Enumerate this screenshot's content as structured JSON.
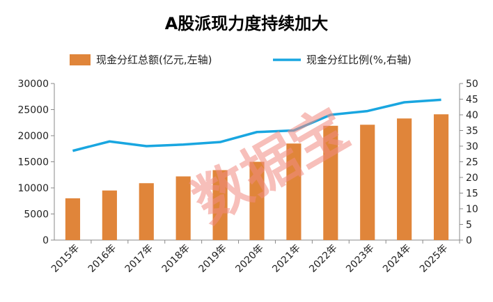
{
  "chart_data": {
    "type": "bar",
    "title": "A股派现力度持续加大",
    "categories": [
      "2015年",
      "2016年",
      "2017年",
      "2018年",
      "2019年",
      "2020年",
      "2021年",
      "2022年",
      "2023年",
      "2024年",
      "2025年"
    ],
    "series": [
      {
        "name": "现金分红总额(亿元,左轴)",
        "type": "bar",
        "axis": "left",
        "color": "#e0853a",
        "values": [
          8000,
          9500,
          10900,
          12200,
          13400,
          15000,
          18500,
          21900,
          22100,
          23300,
          24100
        ]
      },
      {
        "name": "现金分红比例(%,右轴)",
        "type": "line",
        "axis": "right",
        "color": "#19a6e0",
        "values": [
          28.5,
          31.5,
          30,
          30.5,
          31.3,
          34.5,
          35,
          40,
          41.2,
          44,
          44.8
        ]
      }
    ],
    "y_left": {
      "ylim": [
        0,
        30000
      ],
      "ticks": [
        "0",
        "5000",
        "10000",
        "15000",
        "20000",
        "25000",
        "30000"
      ]
    },
    "y_right": {
      "ylim": [
        0,
        50
      ],
      "ticks": [
        "0",
        "5",
        "10",
        "15",
        "20",
        "25",
        "30",
        "35",
        "40",
        "45",
        "50"
      ]
    },
    "grid": false,
    "legend": "top",
    "watermark": "数据宝"
  }
}
